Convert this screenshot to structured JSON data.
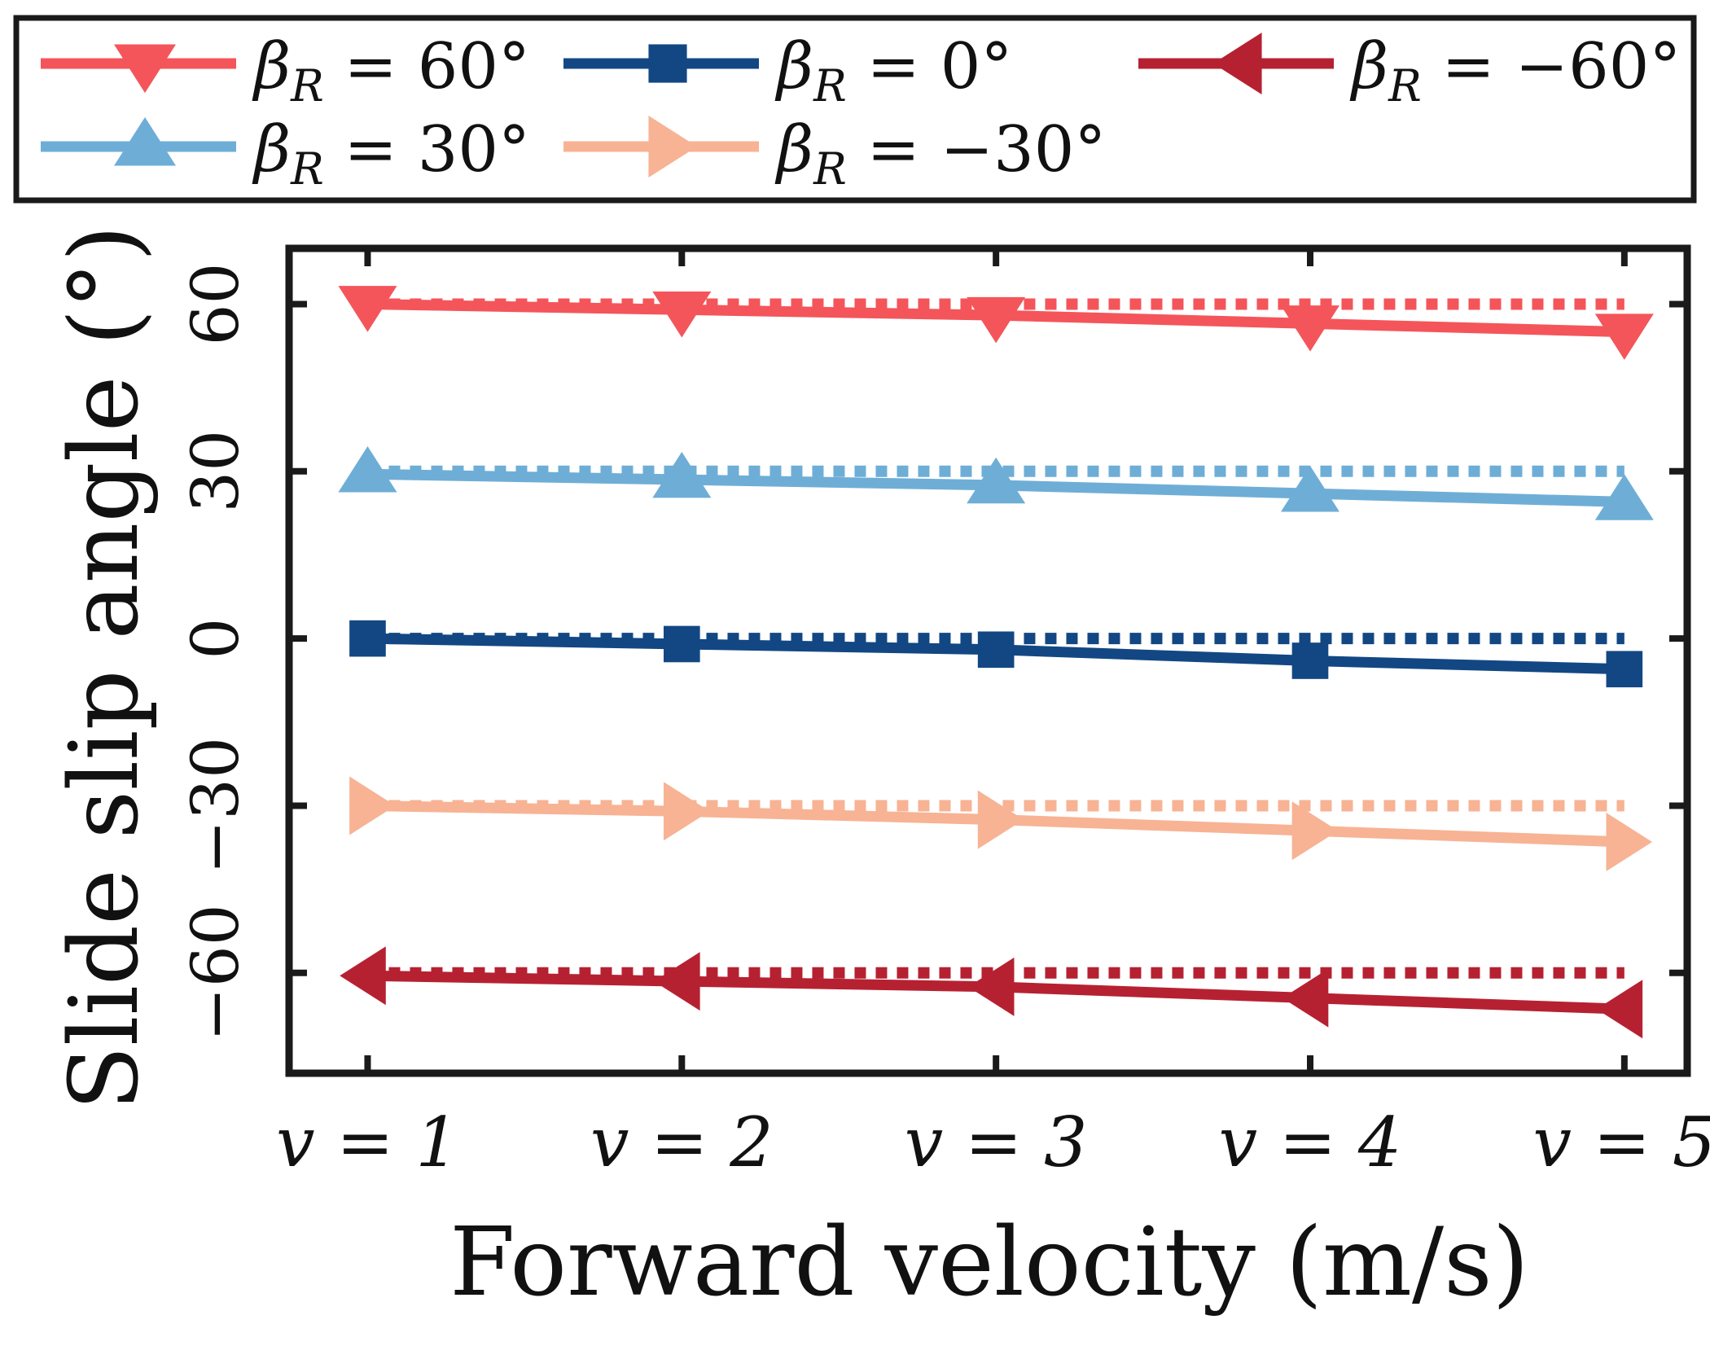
{
  "chart_data": {
    "type": "line",
    "title": "",
    "xlabel": "Forward velocity (m/s)",
    "ylabel": "Slide slip angle (°)",
    "categories": [
      "v = 1",
      "v = 2",
      "v = 3",
      "v = 4",
      "v = 5"
    ],
    "x": [
      1,
      2,
      3,
      4,
      5
    ],
    "yticks": [
      -60,
      -30,
      0,
      30,
      60
    ],
    "ytick_labels": [
      "−60",
      "−30",
      "0",
      "30",
      "60"
    ],
    "ylim": [
      -78,
      70
    ],
    "xlim": [
      0.75,
      5.2
    ],
    "grid": false,
    "legend_position": "top",
    "series": [
      {
        "name": "βR = 60°",
        "legend_name": "β",
        "legend_sub": "R",
        "legend_rest": " = 60°",
        "color": "#f4555a",
        "marker": "triangle-down",
        "reference": 60,
        "values": [
          60,
          59,
          58,
          56.5,
          55
        ]
      },
      {
        "name": "βR = 0°",
        "legend_name": "β",
        "legend_sub": "R",
        "legend_rest": " = 0°",
        "color": "#124783",
        "marker": "square",
        "reference": 0,
        "values": [
          0,
          -1,
          -2,
          -4,
          -5.5
        ]
      },
      {
        "name": "βR = −60°",
        "legend_name": "β",
        "legend_sub": "R",
        "legend_rest": " = −60°",
        "color": "#b62131",
        "marker": "triangle-left",
        "reference": -60,
        "values": [
          -60.5,
          -61.5,
          -62.5,
          -64.5,
          -66.5
        ]
      },
      {
        "name": "βR = 30°",
        "legend_name": "β",
        "legend_sub": "R",
        "legend_rest": " = 30°",
        "color": "#6eaed6",
        "marker": "triangle-up",
        "reference": 30,
        "values": [
          29.5,
          28.5,
          27.5,
          26,
          24.5
        ]
      },
      {
        "name": "βR = −30°",
        "legend_name": "β",
        "legend_sub": "R",
        "legend_rest": " = −30°",
        "color": "#f7b394",
        "marker": "triangle-right",
        "reference": -30,
        "values": [
          -30,
          -31,
          -32.5,
          -34.5,
          -36.5
        ]
      }
    ]
  }
}
